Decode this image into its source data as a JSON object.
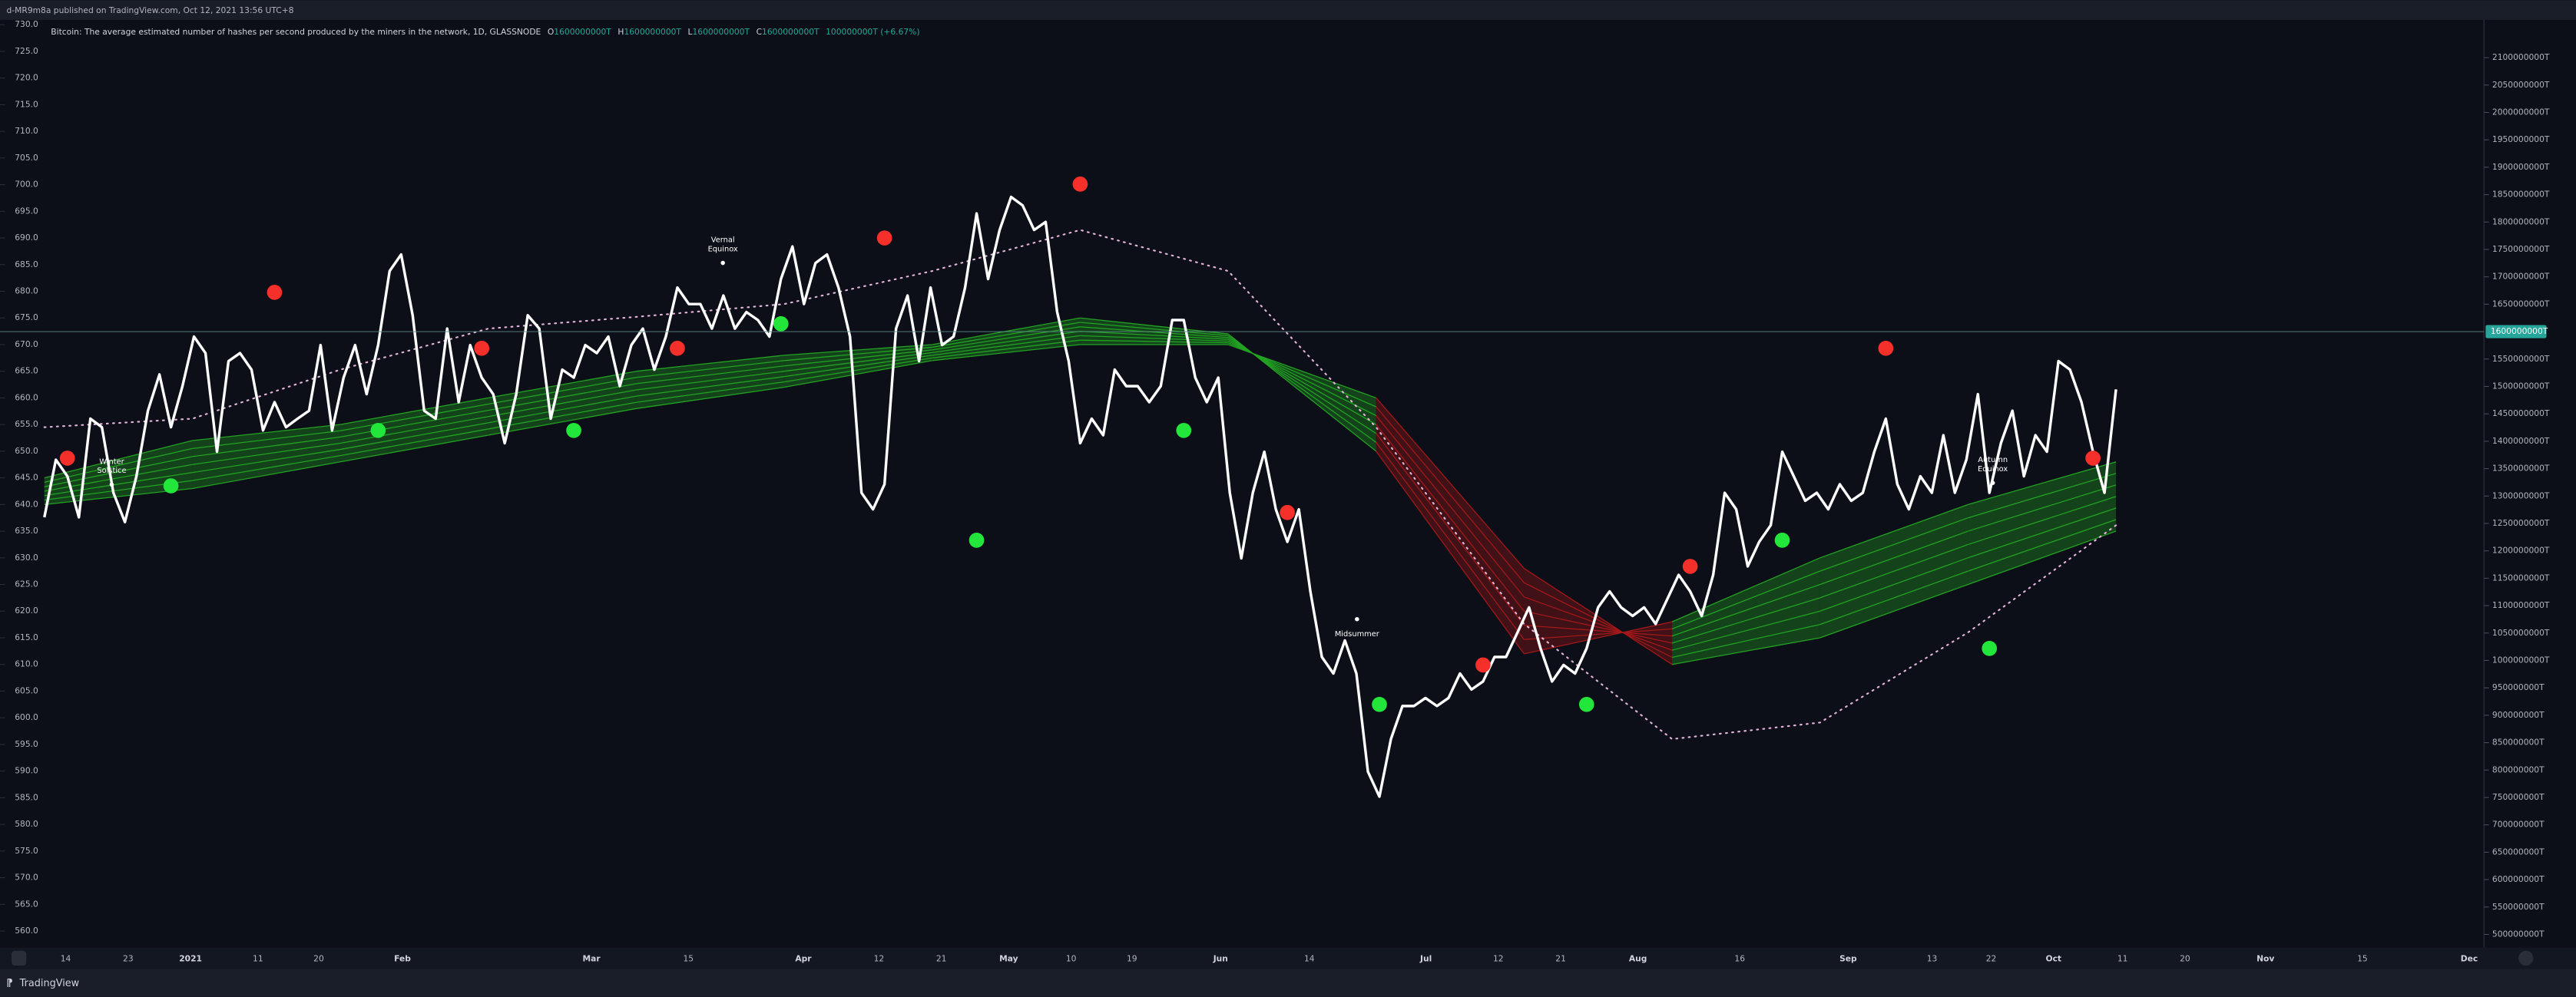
{
  "header": {
    "published": "d-MR9m8a published on TradingView.com, Oct 12, 2021 13:56 UTC+8"
  },
  "legend": {
    "title": "Bitcoin: The average estimated number of hashes per second produced by the miners in the network, 1D, GLASSNODE",
    "items": [
      {
        "key": "O",
        "value": "1600000000T"
      },
      {
        "key": "H",
        "value": "1600000000T"
      },
      {
        "key": "L",
        "value": "1600000000T"
      },
      {
        "key": "C",
        "value": "1600000000T"
      }
    ],
    "change": "100000000T (+6.67%)"
  },
  "footer": {
    "brand": "TradingView"
  },
  "chart_data": {
    "type": "line",
    "ylim": [
      556.9,
      730.9
    ],
    "yticks": [
      {
        "value": 730,
        "label": "730.0"
      },
      {
        "value": 725,
        "label": "725.0"
      },
      {
        "value": 720,
        "label": "720.0"
      },
      {
        "value": 715,
        "label": "715.0"
      },
      {
        "value": 710,
        "label": "710.0"
      },
      {
        "value": 705,
        "label": "705.0"
      },
      {
        "value": 700,
        "label": "700.0"
      },
      {
        "value": 695,
        "label": "695.0"
      },
      {
        "value": 690,
        "label": "690.0"
      },
      {
        "value": 685,
        "label": "685.0"
      },
      {
        "value": 680,
        "label": "680.0"
      },
      {
        "value": 675,
        "label": "675.0"
      },
      {
        "value": 670,
        "label": "670.0"
      },
      {
        "value": 665,
        "label": "665.0"
      },
      {
        "value": 660,
        "label": "660.0"
      },
      {
        "value": 655,
        "label": "655.0"
      },
      {
        "value": 650,
        "label": "650.0"
      },
      {
        "value": 645,
        "label": "645.0"
      },
      {
        "value": 640,
        "label": "640.0"
      },
      {
        "value": 635,
        "label": "635.0"
      },
      {
        "value": 630,
        "label": "630.0"
      },
      {
        "value": 625,
        "label": "625.0"
      },
      {
        "value": 620,
        "label": "620.0"
      },
      {
        "value": 615,
        "label": "615.0"
      },
      {
        "value": 610,
        "label": "610.0"
      },
      {
        "value": 605,
        "label": "605.0"
      },
      {
        "value": 600,
        "label": "600.0"
      },
      {
        "value": 595,
        "label": "595.0"
      },
      {
        "value": 590,
        "label": "590.0"
      },
      {
        "value": 585,
        "label": "585.0"
      },
      {
        "value": 580,
        "label": "580.0"
      },
      {
        "value": 575,
        "label": "575.0"
      },
      {
        "value": 570,
        "label": "570.0"
      },
      {
        "value": 565,
        "label": "565.0"
      },
      {
        "value": 560,
        "label": "560.0"
      }
    ],
    "y2lim": [
      476100000,
      2168800000
    ],
    "y2ticks": [
      {
        "value": 2100000000,
        "label": "2100000000T"
      },
      {
        "value": 2050000000,
        "label": "2050000000T"
      },
      {
        "value": 2000000000,
        "label": "2000000000T"
      },
      {
        "value": 1950000000,
        "label": "1950000000T"
      },
      {
        "value": 1900000000,
        "label": "1900000000T"
      },
      {
        "value": 1850000000,
        "label": "1850000000T"
      },
      {
        "value": 1800000000,
        "label": "1800000000T"
      },
      {
        "value": 1750000000,
        "label": "1750000000T"
      },
      {
        "value": 1700000000,
        "label": "1700000000T"
      },
      {
        "value": 1650000000,
        "label": "1650000000T"
      },
      {
        "value": 1550000000,
        "label": "1550000000T"
      },
      {
        "value": 1500000000,
        "label": "1500000000T"
      },
      {
        "value": 1450000000,
        "label": "1450000000T"
      },
      {
        "value": 1400000000,
        "label": "1400000000T"
      },
      {
        "value": 1350000000,
        "label": "1350000000T"
      },
      {
        "value": 1300000000,
        "label": "1300000000T"
      },
      {
        "value": 1250000000,
        "label": "1250000000T"
      },
      {
        "value": 1200000000,
        "label": "1200000000T"
      },
      {
        "value": 1150000000,
        "label": "1150000000T"
      },
      {
        "value": 1100000000,
        "label": "1100000000T"
      },
      {
        "value": 1050000000,
        "label": "1050000000T"
      },
      {
        "value": 1000000000,
        "label": "1000000000T"
      },
      {
        "value": 950000000,
        "label": "950000000T"
      },
      {
        "value": 900000000,
        "label": "900000000T"
      },
      {
        "value": 850000000,
        "label": "850000000T"
      },
      {
        "value": 800000000,
        "label": "800000000T"
      },
      {
        "value": 750000000,
        "label": "750000000T"
      },
      {
        "value": 700000000,
        "label": "700000000T"
      },
      {
        "value": 650000000,
        "label": "650000000T"
      },
      {
        "value": 600000000,
        "label": "600000000T"
      },
      {
        "value": 550000000,
        "label": "550000000T"
      },
      {
        "value": 500000000,
        "label": "500000000T"
      }
    ],
    "last": {
      "value": 1600000000,
      "label": "1600000000T"
    },
    "x_labels": [
      "14",
      "23",
      "2021",
      "11",
      "20",
      "Feb",
      "Mar",
      "15",
      "Apr",
      "12",
      "21",
      "May",
      "10",
      "19",
      "Jun",
      "14",
      "Jul",
      "12",
      "21",
      "Aug",
      "16",
      "Sep",
      "13",
      "22",
      "Oct",
      "11",
      "20",
      "Nov",
      "15",
      "Dec"
    ],
    "series": [
      {
        "color": "#ffffff",
        "values": [
          637.6,
          648.4,
          645.3,
          637.6,
          656.1,
          654.5,
          642.2,
          636.7,
          645.3,
          657.6,
          664.4,
          654.5,
          662.2,
          671.5,
          668.4,
          649.9,
          666.9,
          668.4,
          665.3,
          653.9,
          659.2,
          654.5,
          656.1,
          657.6,
          669.9,
          653.9,
          663.8,
          669.9,
          660.7,
          669.9,
          683.8,
          686.9,
          675.5,
          657.6,
          656.1,
          673,
          659.2,
          669.9,
          663.8,
          660.7,
          651.5,
          660.7,
          675.5,
          673,
          656.1,
          665.3,
          663.8,
          669.9,
          668.4,
          671.5,
          662.2,
          669.9,
          673,
          665.3,
          671.5,
          680.7,
          677.6,
          677.6,
          673,
          679.2,
          673,
          676.1,
          674.6,
          671.5,
          682.3,
          688.4,
          677.6,
          685.3,
          686.9,
          680.7,
          671.5,
          642.2,
          639.1,
          643.8,
          673,
          679.2,
          666.9,
          680.7,
          669.9,
          671.5,
          680.7,
          694.6,
          682.3,
          691.5,
          697.7,
          696.1,
          691.5,
          693,
          676.1,
          666.9,
          651.5,
          656.1,
          653,
          665.3,
          662.2,
          662.2,
          659.2,
          662.2,
          674.6,
          674.6,
          663.8,
          659.2,
          663.8,
          642.2,
          629.9,
          642.2,
          649.9,
          639.1,
          633,
          639.1,
          623.7,
          611.4,
          608.3,
          614.5,
          608.3,
          589.9,
          585.2,
          596,
          602.2,
          602.2,
          603.7,
          602.2,
          603.7,
          608.3,
          605.3,
          606.8,
          611.4,
          611.4,
          616,
          620.7,
          613,
          606.8,
          609.9,
          608.3,
          613,
          620.7,
          623.7,
          620.7,
          619.1,
          620.7,
          617.6,
          622.2,
          626.8,
          623.7,
          619.1,
          626.8,
          642.2,
          639.1,
          628.4,
          633,
          636.1,
          649.9,
          645.3,
          640.7,
          642.2,
          639.1,
          643.8,
          640.7,
          642.2,
          649.9,
          656.1,
          643.8,
          639.1,
          645.3,
          642.2,
          653,
          642.2,
          648.4,
          660.7,
          642.2,
          651.5,
          657.6,
          645.3,
          653,
          649.9,
          666.9,
          665.3,
          659.2,
          649.9,
          642.2,
          661.6
        ]
      }
    ],
    "ribbon": {
      "up_color": "#22a322",
      "down_color": "#a31818",
      "fast": [
        645,
        652,
        655,
        660,
        665,
        668,
        670,
        675,
        672,
        650,
        612,
        618,
        630,
        640,
        648
      ],
      "slow": [
        640,
        643,
        648,
        653,
        658,
        662,
        667,
        670,
        670,
        660,
        628,
        610,
        615,
        625,
        635
      ]
    },
    "slow_ma": {
      "color": "#e6b3d9",
      "values": [
        654.5,
        656.1,
        665.3,
        673,
        675.2,
        677.6,
        683.8,
        691.5,
        683.8,
        654.5,
        617.6,
        596,
        599.1,
        616,
        636.1
      ]
    },
    "signals": [
      {
        "color": "#22e63a",
        "x": [
          11,
          29,
          46,
          64,
          81,
          99,
          116,
          134,
          151,
          169
        ],
        "values": [
          643.5,
          653.9,
          653.9,
          673.9,
          633.3,
          653.9,
          602.5,
          602.5,
          633.3,
          613
        ]
      },
      {
        "color": "#f5302a",
        "x": [
          2,
          20,
          38,
          55,
          73,
          90,
          108,
          125,
          143,
          160,
          178
        ],
        "values": [
          648.7,
          679.8,
          669.3,
          669.3,
          690,
          700.1,
          638.5,
          609.9,
          628.4,
          669.3,
          648.7
        ]
      }
    ],
    "annotations": [
      {
        "lines": [
          "Winter",
          "Solstice"
        ]
      },
      {
        "lines": [
          "Vernal",
          "Equinox"
        ]
      },
      {
        "lines": [
          "Midsummer"
        ]
      },
      {
        "lines": [
          "Autumn",
          "Equinox"
        ]
      }
    ]
  }
}
